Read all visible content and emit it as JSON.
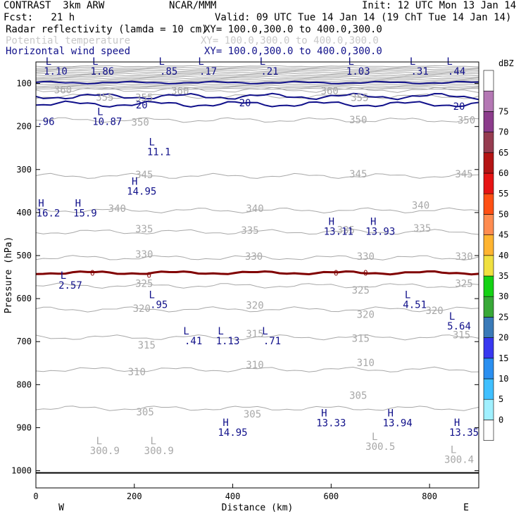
{
  "header": {
    "model": "CONTRAST  3km ARW",
    "org": "NCAR/MMM",
    "init": "Init: 12 UTC Mon 13 Jan 14",
    "fcst": "Fcst:   21 h",
    "valid": "Valid: 09 UTC Tue 14 Jan 14 (19 ChT Tue 14 Jan 14)",
    "fields": [
      {
        "name": "Radar reflectivity (lamda = 10 cm)",
        "xy": "XY= 100.0,300.0 to 400.0,300.0"
      },
      {
        "name": "Potential temperature",
        "xy": "XY= 100.0,300.0 to 400.0,300.0"
      },
      {
        "name": "Horizontal wind speed",
        "xy": "XY= 100.0,300.0 to 400.0,300.0"
      }
    ]
  },
  "colors": {
    "theta": "#a8a8a8",
    "wind": "#10108a",
    "zero_line": "#800000"
  },
  "chart_data": {
    "type": "cross-section",
    "xlabel": "Distance (km)",
    "ylabel": "Pressure (hPa)",
    "xlim": [
      0,
      900
    ],
    "ylim": [
      1040,
      50
    ],
    "x_ticks": [
      0,
      200,
      400,
      600,
      800
    ],
    "y_ticks": [
      100,
      200,
      300,
      400,
      500,
      600,
      700,
      800,
      900,
      1000
    ],
    "x_ends": {
      "left": "W",
      "right": "E"
    },
    "theta_contours": [
      {
        "label": "360",
        "p": 115
      },
      {
        "label": "355",
        "p": 130
      },
      {
        "label": "350",
        "p": 185
      },
      {
        "label": "345",
        "p": 315
      },
      {
        "label": "340",
        "p": 395
      },
      {
        "label": "335",
        "p": 445
      },
      {
        "label": "330",
        "p": 505
      },
      {
        "label": "325",
        "p": 570
      },
      {
        "label": "320",
        "p": 625
      },
      {
        "label": "315",
        "p": 690
      },
      {
        "label": "310",
        "p": 765
      },
      {
        "label": "305",
        "p": 855
      }
    ],
    "theta_labels": [
      {
        "text": "360",
        "x": 55,
        "p": 115
      },
      {
        "text": "355",
        "x": 140,
        "p": 132
      },
      {
        "text": "355",
        "x": 220,
        "p": 133
      },
      {
        "text": "360",
        "x": 293,
        "p": 117
      },
      {
        "text": "360",
        "x": 597,
        "p": 117
      },
      {
        "text": "355",
        "x": 658,
        "p": 133
      },
      {
        "text": "350",
        "x": 212,
        "p": 190
      },
      {
        "text": "350",
        "x": 655,
        "p": 184
      },
      {
        "text": "350",
        "x": 875,
        "p": 185
      },
      {
        "text": "345",
        "x": 220,
        "p": 312
      },
      {
        "text": "345",
        "x": 655,
        "p": 310
      },
      {
        "text": "345",
        "x": 870,
        "p": 310
      },
      {
        "text": "340",
        "x": 165,
        "p": 390
      },
      {
        "text": "340",
        "x": 445,
        "p": 390
      },
      {
        "text": "340",
        "x": 782,
        "p": 383
      },
      {
        "text": "335",
        "x": 220,
        "p": 438
      },
      {
        "text": "335",
        "x": 435,
        "p": 441
      },
      {
        "text": "335",
        "x": 630,
        "p": 440
      },
      {
        "text": "335",
        "x": 785,
        "p": 436
      },
      {
        "text": "330",
        "x": 220,
        "p": 497
      },
      {
        "text": "330",
        "x": 443,
        "p": 502
      },
      {
        "text": "330",
        "x": 670,
        "p": 502
      },
      {
        "text": "330",
        "x": 870,
        "p": 502
      },
      {
        "text": "325",
        "x": 220,
        "p": 565
      },
      {
        "text": "325",
        "x": 660,
        "p": 580
      },
      {
        "text": "325",
        "x": 870,
        "p": 565
      },
      {
        "text": "320",
        "x": 215,
        "p": 623
      },
      {
        "text": "320",
        "x": 445,
        "p": 615
      },
      {
        "text": "320",
        "x": 670,
        "p": 637
      },
      {
        "text": "320",
        "x": 810,
        "p": 628
      },
      {
        "text": "315",
        "x": 225,
        "p": 708
      },
      {
        "text": "315",
        "x": 445,
        "p": 682
      },
      {
        "text": "315",
        "x": 660,
        "p": 692
      },
      {
        "text": "315",
        "x": 865,
        "p": 684
      },
      {
        "text": "310",
        "x": 205,
        "p": 770
      },
      {
        "text": "310",
        "x": 445,
        "p": 754
      },
      {
        "text": "310",
        "x": 670,
        "p": 749
      },
      {
        "text": "305",
        "x": 222,
        "p": 863
      },
      {
        "text": "305",
        "x": 440,
        "p": 868
      },
      {
        "text": "305",
        "x": 655,
        "p": 825
      }
    ],
    "wind_contours": [
      {
        "label": "20",
        "p": 130
      },
      {
        "label": "20",
        "p": 148
      }
    ],
    "wind_labels": [
      {
        "text": "20",
        "x": 215,
        "p": 150
      },
      {
        "text": "20",
        "x": 425,
        "p": 145
      },
      {
        "text": "20",
        "x": 860,
        "p": 153
      }
    ],
    "zero_labels": [
      {
        "text": "0",
        "x": 115,
        "p": 540
      },
      {
        "text": "0",
        "x": 230,
        "p": 545
      },
      {
        "text": "0",
        "x": 610,
        "p": 540
      },
      {
        "text": "0",
        "x": 670,
        "p": 540
      }
    ],
    "reflectivity_zero_line_p": 540,
    "extrema": [
      {
        "type": "L",
        "value": "1.10",
        "x": 40,
        "p": 73
      },
      {
        "type": "L",
        "value": "1.86",
        "x": 135,
        "p": 73
      },
      {
        "type": "L",
        "value": ".85",
        "x": 270,
        "p": 73
      },
      {
        "type": "L",
        "value": ".17",
        "x": 350,
        "p": 73
      },
      {
        "type": "L",
        "value": ".21",
        "x": 475,
        "p": 73
      },
      {
        "type": "L",
        "value": "1.03",
        "x": 655,
        "p": 73
      },
      {
        "type": "L",
        "value": ".31",
        "x": 780,
        "p": 73
      },
      {
        "type": "L",
        "value": ".44",
        "x": 855,
        "p": 73
      },
      {
        "type": "",
        "value": ".96",
        "x": 20,
        "p": 190
      },
      {
        "type": "L",
        "value": "10.87",
        "x": 145,
        "p": 190
      },
      {
        "type": "L",
        "value": "11.1",
        "x": 250,
        "p": 260
      },
      {
        "type": "H",
        "value": "14.95",
        "x": 215,
        "p": 352
      },
      {
        "type": "H",
        "value": "16.2",
        "x": 25,
        "p": 403
      },
      {
        "type": "H",
        "value": "15.9",
        "x": 100,
        "p": 403
      },
      {
        "type": "H",
        "value": "13.11",
        "x": 615,
        "p": 445
      },
      {
        "type": "H",
        "value": "13.93",
        "x": 700,
        "p": 445
      },
      {
        "type": "L",
        "value": "2.57",
        "x": 70,
        "p": 570
      },
      {
        "type": "L",
        "value": ".95",
        "x": 250,
        "p": 615
      },
      {
        "type": "L",
        "value": "4.51",
        "x": 770,
        "p": 615
      },
      {
        "type": "L",
        "value": "5.64",
        "x": 860,
        "p": 665
      },
      {
        "type": "L",
        "value": ".41",
        "x": 320,
        "p": 700
      },
      {
        "type": "L",
        "value": "1.13",
        "x": 390,
        "p": 700
      },
      {
        "type": "L",
        "value": ".71",
        "x": 480,
        "p": 700
      },
      {
        "type": "H",
        "value": "14.95",
        "x": 400,
        "p": 912
      },
      {
        "type": "H",
        "value": "13.33",
        "x": 600,
        "p": 890
      },
      {
        "type": "H",
        "value": "13.94",
        "x": 735,
        "p": 890
      },
      {
        "type": "H",
        "value": "13.35",
        "x": 870,
        "p": 912
      }
    ],
    "extrema_theta": [
      {
        "type": "L",
        "value": "300.9",
        "x": 140,
        "p": 955
      },
      {
        "type": "L",
        "value": "300.9",
        "x": 250,
        "p": 955
      },
      {
        "type": "L",
        "value": "300.5",
        "x": 700,
        "p": 945
      },
      {
        "type": "L",
        "value": "300.4",
        "x": 860,
        "p": 975
      }
    ],
    "colorbar": {
      "units": "dBZ",
      "levels": [
        0,
        5,
        10,
        15,
        20,
        25,
        30,
        35,
        40,
        45,
        50,
        55,
        60,
        65,
        70,
        75
      ],
      "colors": [
        "#ffffff",
        "#a0f0ff",
        "#40c0ff",
        "#2a8ff0",
        "#3838f0",
        "#3a7ab8",
        "#38a838",
        "#14d214",
        "#f0e040",
        "#ffb430",
        "#ff8c50",
        "#ff5014",
        "#e61414",
        "#b41414",
        "#963c50",
        "#8c3c8c",
        "#b478b4",
        "#ffffff"
      ]
    }
  }
}
